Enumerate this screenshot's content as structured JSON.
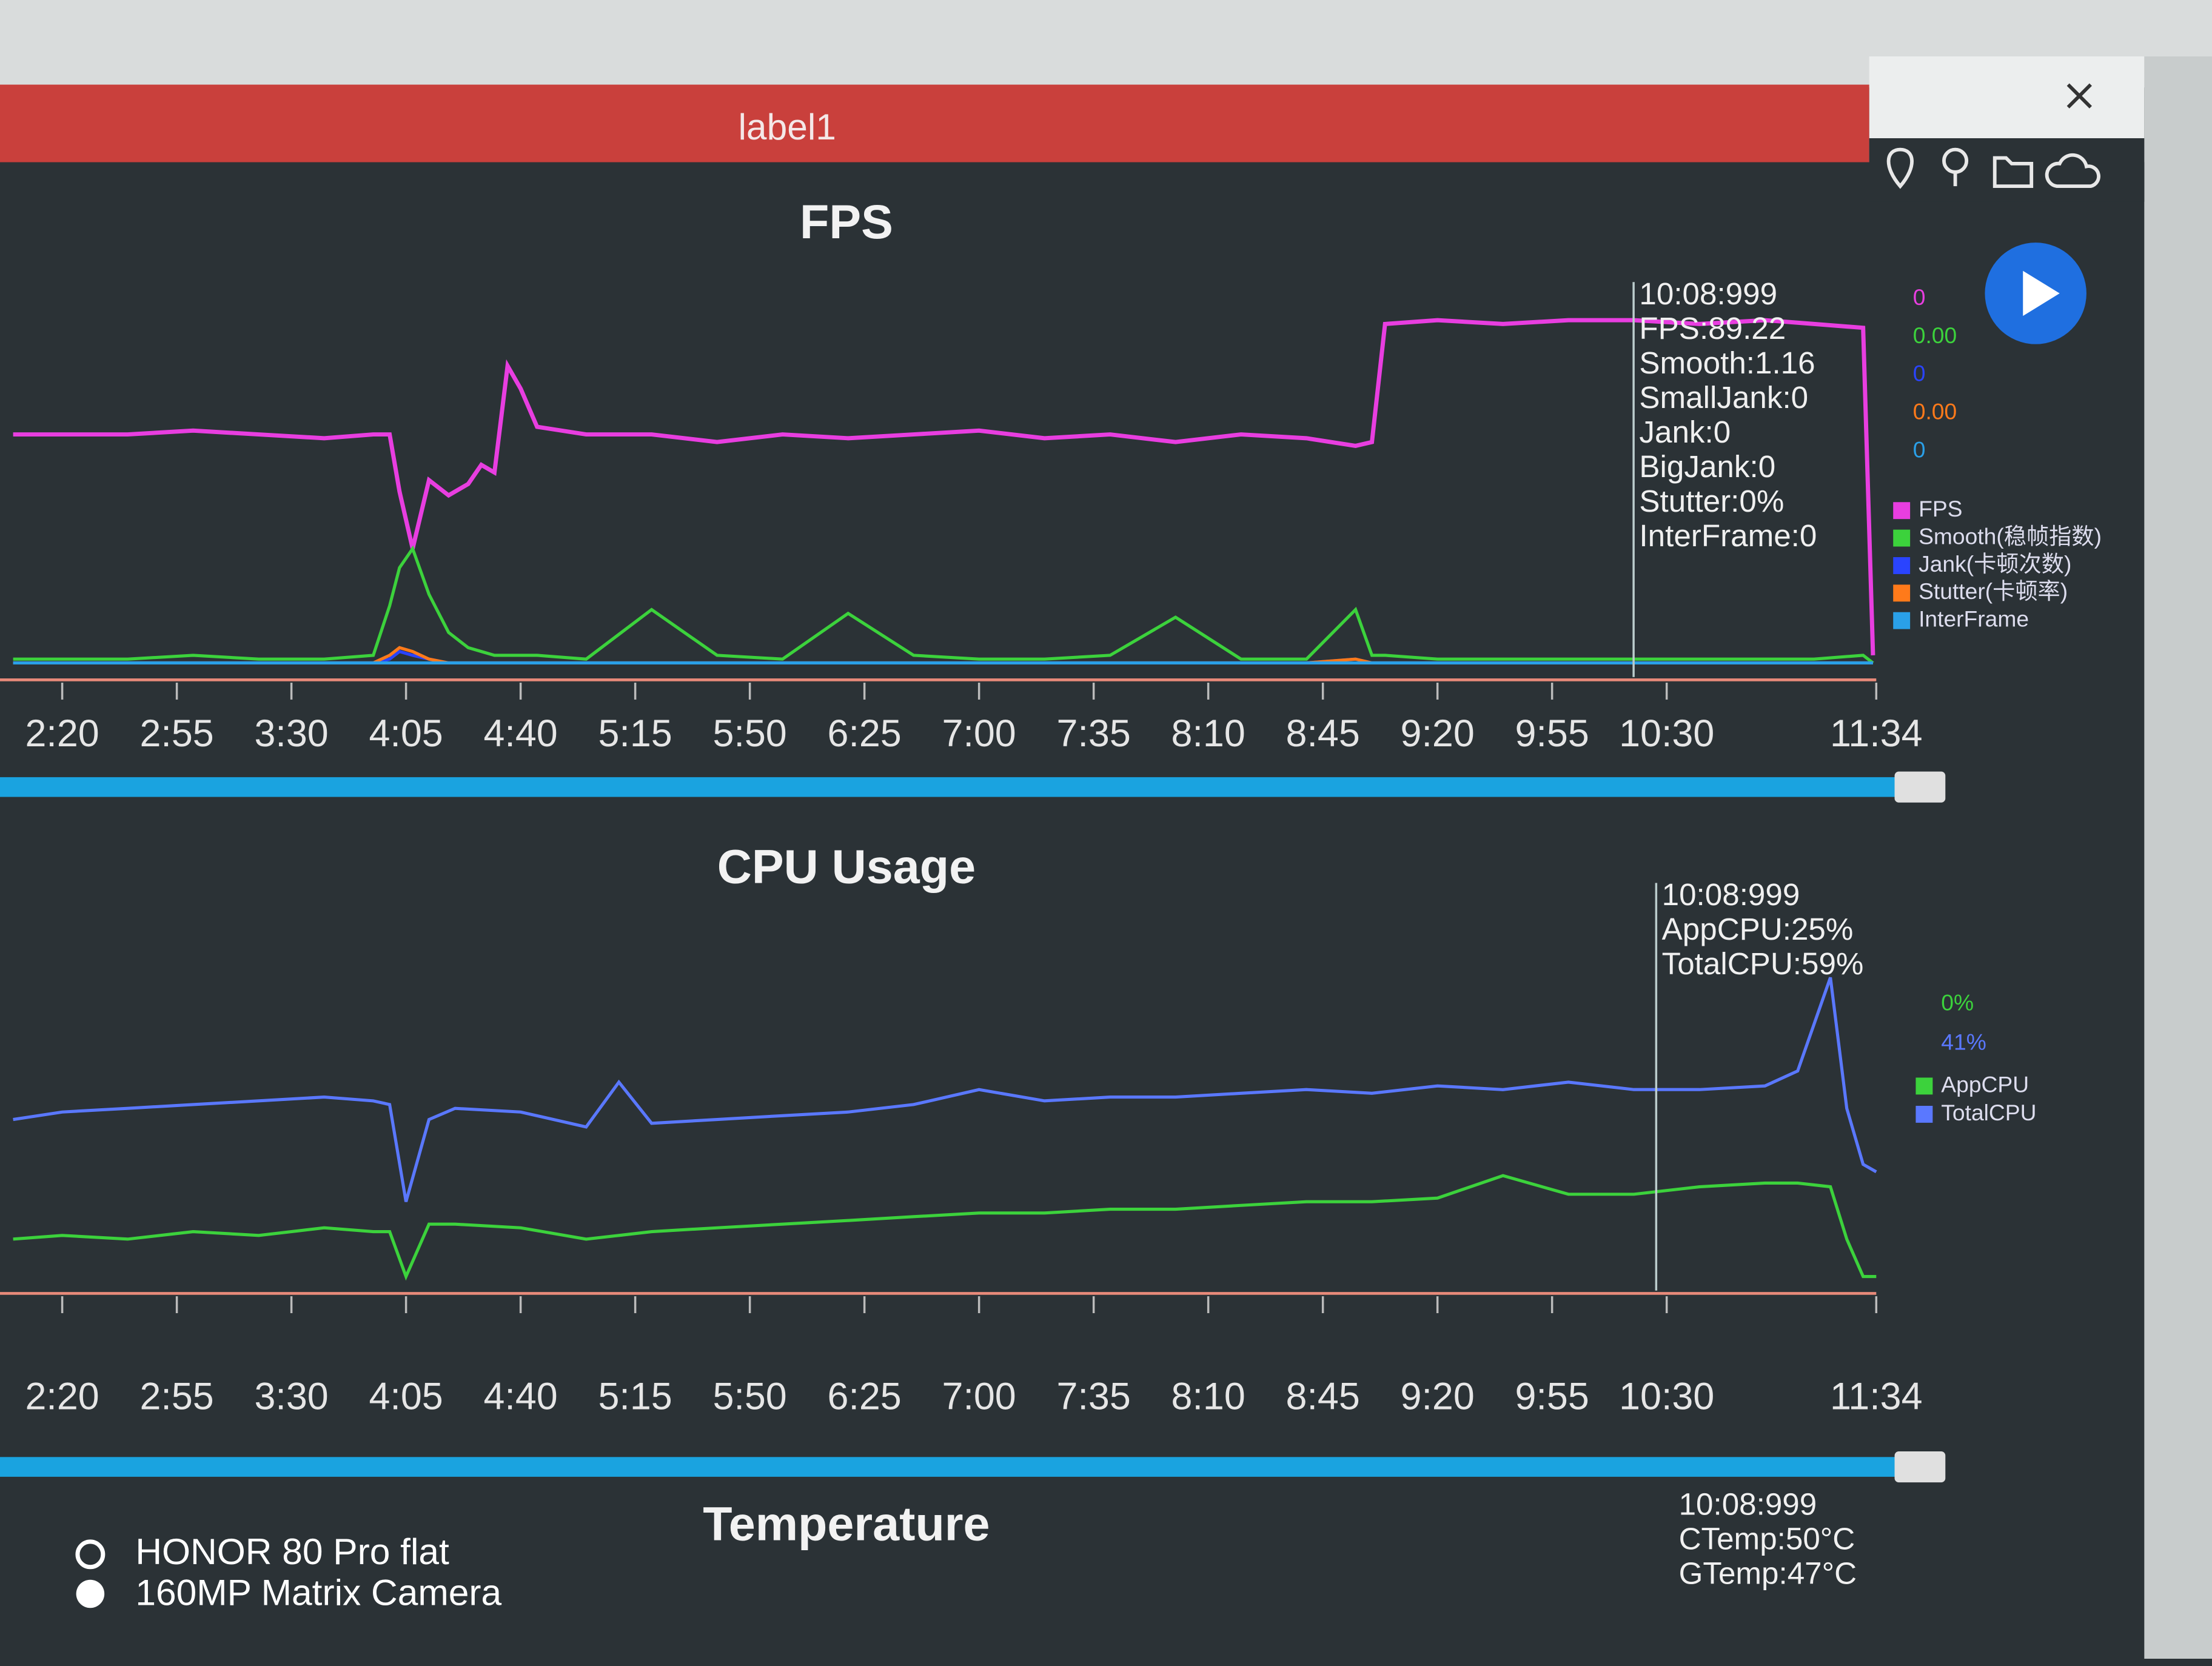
{
  "window_title": "label1",
  "camera_watermark": [
    "HONOR 80 Pro flat",
    "160MP Matrix Camera"
  ],
  "chart_data": [
    {
      "type": "line",
      "title": "FPS",
      "x": [
        125,
        140,
        160,
        180,
        200,
        220,
        235,
        240,
        243,
        247,
        252,
        258,
        264,
        268,
        272,
        276,
        280,
        285,
        300,
        320,
        340,
        360,
        380,
        400,
        420,
        440,
        460,
        480,
        500,
        520,
        535,
        540,
        544,
        560,
        580,
        600,
        620,
        640,
        660,
        675,
        690,
        693
      ],
      "xlim": [
        121,
        694
      ],
      "ylim": [
        0,
        100
      ],
      "xticks": [
        {
          "value": 140,
          "label": "2:20"
        },
        {
          "value": 175,
          "label": "2:55"
        },
        {
          "value": 210,
          "label": "3:30"
        },
        {
          "value": 245,
          "label": "4:05"
        },
        {
          "value": 280,
          "label": "4:40"
        },
        {
          "value": 315,
          "label": "5:15"
        },
        {
          "value": 350,
          "label": "5:50"
        },
        {
          "value": 385,
          "label": "6:25"
        },
        {
          "value": 420,
          "label": "7:00"
        },
        {
          "value": 455,
          "label": "7:35"
        },
        {
          "value": 490,
          "label": "8:10"
        },
        {
          "value": 525,
          "label": "8:45"
        },
        {
          "value": 560,
          "label": "9:20"
        },
        {
          "value": 595,
          "label": "9:55"
        },
        {
          "value": 630,
          "label": "10:30"
        },
        {
          "value": 694,
          "label": "11:34"
        }
      ],
      "series": [
        {
          "name": "FPS",
          "color": "#e83ee0",
          "values": [
            60,
            60,
            60,
            61,
            60,
            59,
            60,
            60,
            45,
            30,
            48,
            44,
            47,
            52,
            50,
            78,
            72,
            62,
            60,
            60,
            58,
            60,
            59,
            60,
            61,
            59,
            60,
            58,
            60,
            59,
            57,
            58,
            89,
            90,
            89,
            90,
            90,
            89,
            90,
            89,
            88,
            2
          ]
        },
        {
          "name": "Smooth(稳帧指数)",
          "color": "#3cd23c",
          "values": [
            1,
            1,
            1,
            2,
            1,
            1,
            2,
            15,
            25,
            30,
            18,
            8,
            4,
            3,
            2,
            2,
            2,
            2,
            1,
            14,
            2,
            1,
            13,
            2,
            1,
            1,
            2,
            12,
            1,
            1,
            14,
            2,
            2,
            1,
            1,
            1,
            1,
            1,
            1,
            1,
            2,
            0
          ]
        },
        {
          "name": "Jank(卡顿次数)",
          "color": "#2a44ff",
          "values": [
            0,
            0,
            0,
            0,
            0,
            0,
            0,
            1,
            3,
            2,
            1,
            0,
            0,
            0,
            0,
            0,
            0,
            0,
            0,
            0,
            0,
            0,
            0,
            0,
            0,
            0,
            0,
            0,
            0,
            0,
            1,
            0,
            0,
            0,
            0,
            0,
            0,
            0,
            0,
            0,
            0,
            0
          ]
        },
        {
          "name": "Stutter(卡顿率)",
          "color": "#ff7a1a",
          "values": [
            0,
            0,
            0,
            0,
            0,
            0,
            0,
            2,
            4,
            3,
            1,
            0,
            0,
            0,
            0,
            0,
            0,
            0,
            0,
            0,
            0,
            0,
            0,
            0,
            0,
            0,
            0,
            0,
            0,
            0,
            1,
            0,
            0,
            0,
            0,
            0,
            0,
            0,
            0,
            0,
            0,
            0
          ]
        },
        {
          "name": "InterFrame",
          "color": "#2aa0e8",
          "values": [
            0,
            0,
            0,
            0,
            0,
            0,
            0,
            0,
            0,
            0,
            0,
            0,
            0,
            0,
            0,
            0,
            0,
            0,
            0,
            0,
            0,
            0,
            0,
            0,
            0,
            0,
            0,
            0,
            0,
            0,
            0,
            0,
            0,
            0,
            0,
            0,
            0,
            0,
            0,
            0,
            0,
            0
          ]
        }
      ],
      "side_values": [
        "0",
        "0.00",
        "0",
        "0.00",
        "0"
      ],
      "tooltip": [
        "10:08:999",
        "FPS:89.22",
        "Smooth:1.16",
        "SmallJank:0",
        "Jank:0",
        "BigJank:0",
        "Stutter:0%",
        "InterFrame:0"
      ]
    },
    {
      "type": "line",
      "title": "CPU Usage",
      "x": [
        125,
        140,
        160,
        180,
        200,
        220,
        235,
        240,
        245,
        252,
        260,
        280,
        300,
        310,
        320,
        340,
        360,
        380,
        400,
        420,
        440,
        460,
        480,
        500,
        520,
        540,
        560,
        580,
        600,
        620,
        640,
        660,
        670,
        680,
        685,
        690,
        694
      ],
      "xlim": [
        121,
        694
      ],
      "ylim": [
        0,
        100
      ],
      "xticks": [
        {
          "value": 140,
          "label": "2:20"
        },
        {
          "value": 175,
          "label": "2:55"
        },
        {
          "value": 210,
          "label": "3:30"
        },
        {
          "value": 245,
          "label": "4:05"
        },
        {
          "value": 280,
          "label": "4:40"
        },
        {
          "value": 315,
          "label": "5:15"
        },
        {
          "value": 350,
          "label": "5:50"
        },
        {
          "value": 385,
          "label": "6:25"
        },
        {
          "value": 420,
          "label": "7:00"
        },
        {
          "value": 455,
          "label": "7:35"
        },
        {
          "value": 490,
          "label": "8:10"
        },
        {
          "value": 525,
          "label": "8:45"
        },
        {
          "value": 560,
          "label": "9:20"
        },
        {
          "value": 595,
          "label": "9:55"
        },
        {
          "value": 630,
          "label": "10:30"
        },
        {
          "value": 694,
          "label": "11:34"
        }
      ],
      "series": [
        {
          "name": "AppCPU",
          "color": "#3cd23c",
          "values": [
            10,
            11,
            10,
            12,
            11,
            13,
            12,
            12,
            0,
            14,
            14,
            13,
            10,
            11,
            12,
            13,
            14,
            15,
            16,
            17,
            17,
            18,
            18,
            19,
            20,
            20,
            21,
            27,
            22,
            22,
            24,
            25,
            25,
            24,
            10,
            0,
            0
          ]
        },
        {
          "name": "TotalCPU",
          "color": "#5a78ff",
          "values": [
            42,
            44,
            45,
            46,
            47,
            48,
            47,
            46,
            20,
            42,
            45,
            44,
            40,
            52,
            41,
            42,
            43,
            44,
            46,
            50,
            47,
            48,
            48,
            49,
            50,
            49,
            51,
            50,
            52,
            50,
            50,
            51,
            55,
            80,
            45,
            30,
            28
          ]
        }
      ],
      "side_values": [
        "0%",
        "41%"
      ],
      "tooltip": [
        "10:08:999",
        "AppCPU:25%",
        "TotalCPU:59%"
      ]
    },
    {
      "type": "line",
      "title": "Temperature",
      "tooltip": [
        "10:08:999",
        "CTemp:50°C",
        "GTemp:47°C"
      ]
    }
  ]
}
